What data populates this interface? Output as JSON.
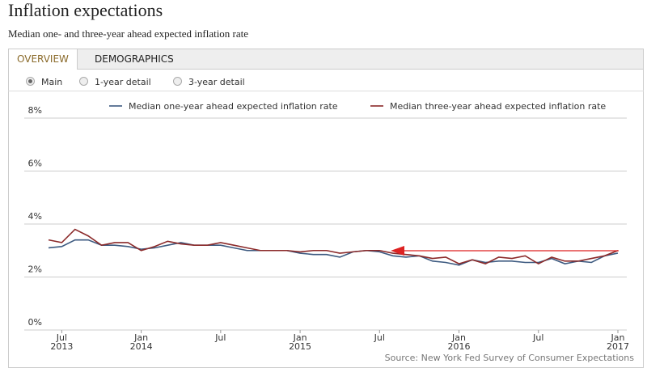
{
  "header": {
    "title": "Inflation expectations",
    "subtitle": "Median one- and three-year ahead expected inflation rate"
  },
  "tabs": [
    "OVERVIEW",
    "DEMOGRAPHICS"
  ],
  "options": [
    "Main",
    "1-year detail",
    "3-year detail"
  ],
  "chart_data": {
    "type": "line",
    "x": [
      "2013-06",
      "2013-07",
      "2013-08",
      "2013-09",
      "2013-10",
      "2013-11",
      "2013-12",
      "2014-01",
      "2014-02",
      "2014-03",
      "2014-04",
      "2014-05",
      "2014-06",
      "2014-07",
      "2014-08",
      "2014-09",
      "2014-10",
      "2014-11",
      "2014-12",
      "2015-01",
      "2015-02",
      "2015-03",
      "2015-04",
      "2015-05",
      "2015-06",
      "2015-07",
      "2015-08",
      "2015-09",
      "2015-10",
      "2015-11",
      "2015-12",
      "2016-01",
      "2016-02",
      "2016-03",
      "2016-04",
      "2016-05",
      "2016-06",
      "2016-07",
      "2016-08",
      "2016-09",
      "2016-10",
      "2016-11",
      "2016-12",
      "2017-01"
    ],
    "series": [
      {
        "name": "Median one-year ahead expected inflation rate",
        "color": "#3d5a80",
        "values": [
          3.1,
          3.15,
          3.4,
          3.4,
          3.2,
          3.2,
          3.15,
          3.05,
          3.1,
          3.2,
          3.3,
          3.2,
          3.2,
          3.2,
          3.1,
          3.0,
          3.0,
          3.0,
          3.0,
          2.9,
          2.85,
          2.85,
          2.75,
          2.95,
          3.0,
          2.95,
          2.8,
          2.75,
          2.8,
          2.6,
          2.55,
          2.45,
          2.65,
          2.55,
          2.6,
          2.6,
          2.55,
          2.55,
          2.7,
          2.5,
          2.6,
          2.55,
          2.8,
          2.9
        ]
      },
      {
        "name": "Median three-year ahead expected inflation rate",
        "color": "#8b2a2a",
        "values": [
          3.4,
          3.3,
          3.8,
          3.55,
          3.2,
          3.3,
          3.3,
          3.0,
          3.15,
          3.35,
          3.25,
          3.2,
          3.2,
          3.3,
          3.2,
          3.1,
          3.0,
          3.0,
          3.0,
          2.95,
          3.0,
          3.0,
          2.9,
          2.95,
          3.0,
          3.0,
          2.9,
          2.85,
          2.8,
          2.7,
          2.75,
          2.5,
          2.65,
          2.5,
          2.75,
          2.7,
          2.8,
          2.5,
          2.75,
          2.6,
          2.6,
          2.7,
          2.8,
          3.0
        ]
      }
    ],
    "xlim": [
      "2013-06",
      "2017-01"
    ],
    "xticks": [
      {
        "value": "2013-07",
        "label": [
          "Jul",
          "2013"
        ]
      },
      {
        "value": "2014-01",
        "label": [
          "Jan",
          "2014"
        ]
      },
      {
        "value": "2014-07",
        "label": [
          "Jul"
        ]
      },
      {
        "value": "2015-01",
        "label": [
          "Jan",
          "2015"
        ]
      },
      {
        "value": "2015-07",
        "label": [
          "Jul"
        ]
      },
      {
        "value": "2016-01",
        "label": [
          "Jan",
          "2016"
        ]
      },
      {
        "value": "2016-07",
        "label": [
          "Jul"
        ]
      },
      {
        "value": "2017-01",
        "label": [
          "Jan",
          "2017"
        ]
      }
    ],
    "ylim": [
      0,
      8
    ],
    "yticks": [
      {
        "value": 0,
        "label": "0%"
      },
      {
        "value": 2,
        "label": "2%"
      },
      {
        "value": 4,
        "label": "4%"
      },
      {
        "value": 6,
        "label": "6%"
      },
      {
        "value": 8,
        "label": "8%"
      }
    ],
    "grid": true,
    "legend": "top-right",
    "source": "Source: New York Fed Survey of Consumer Expectations"
  }
}
